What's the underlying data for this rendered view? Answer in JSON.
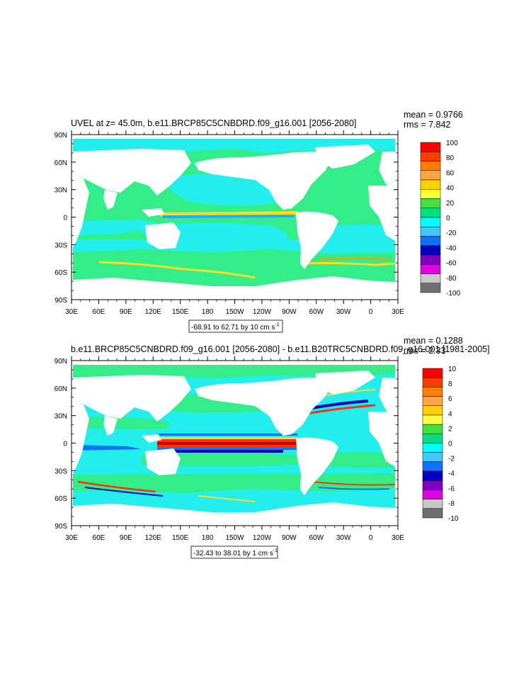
{
  "panels": [
    {
      "title": "UVEL at z=  45.0m, b.e11.BRCP85C5CNBDRD.f09_g16.001 [2056-2080]",
      "stat_mean": "mean = 0.9766",
      "stat_rms": "rms = 7.842",
      "range_text": "-68.91 to 62.71 by 10 cm s",
      "range_sup": "-1",
      "colorbar_labels": [
        "100",
        "80",
        "60",
        "40",
        "20",
        "0",
        "-20",
        "-40",
        "-60",
        "-80",
        "-100"
      ]
    },
    {
      "title": "b.e11.BRCP85C5CNBDRD.f09_g16.001 [2056-2080] - b.e11.B20TRC5CNBDRD.f09_g16.001 [1981-2005]",
      "stat_mean": "mean = 0.1288",
      "stat_rms": "rms = 2.33",
      "range_text": "-32.43 to 38.01 by 1 cm s",
      "range_sup": "-1",
      "colorbar_labels": [
        "10",
        "8",
        "6",
        "4",
        "2",
        "0",
        "-2",
        "-4",
        "-6",
        "-8",
        "-10"
      ]
    }
  ],
  "lat_labels": [
    "90N",
    "60N",
    "30N",
    "0",
    "30S",
    "60S",
    "90S"
  ],
  "lon_labels": [
    "30E",
    "60E",
    "90E",
    "120E",
    "150E",
    "180",
    "150W",
    "120W",
    "90W",
    "60W",
    "30W",
    "0",
    "30E"
  ],
  "colorbar_colors": [
    "#ff0000",
    "#ff3a00",
    "#ff8000",
    "#ffa640",
    "#ffd000",
    "#ffff40",
    "#40e040",
    "#00e080",
    "#00ffff",
    "#40c8ff",
    "#1070ff",
    "#0000c0",
    "#8000c0",
    "#e000e0",
    "#c8c8c8",
    "#707070"
  ],
  "colors": {
    "ocean": "#33ee88",
    "land": "#ffffff",
    "cyan": "#22eeee"
  }
}
